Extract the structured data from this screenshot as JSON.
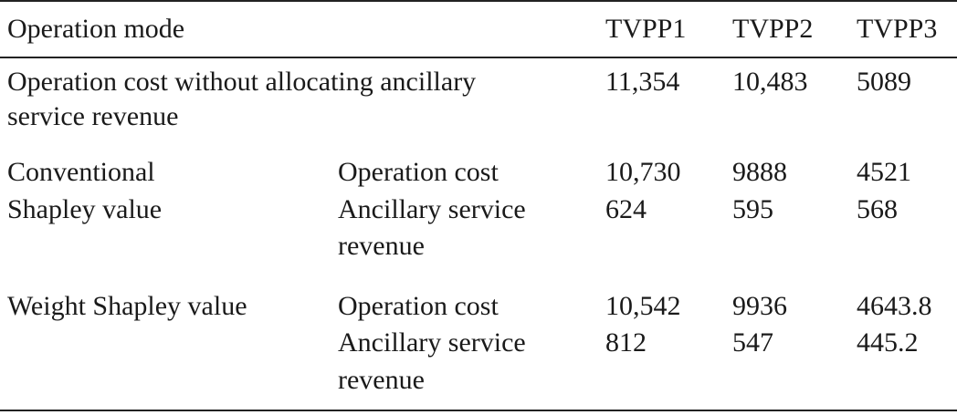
{
  "table": {
    "header": {
      "operation_mode": "Operation mode",
      "tvpp1": "TVPP1",
      "tvpp2": "TVPP2",
      "tvpp3": "TVPP3"
    },
    "rows": [
      {
        "label_line1": "Operation cost without allocating ancillary",
        "label_line2": "service revenue",
        "tvpp1": "11,354",
        "tvpp2": "10,483",
        "tvpp3": "5089"
      },
      {
        "method_line1": "Conventional",
        "method_line2": "Shapley value",
        "op_label": "Operation cost",
        "op": {
          "tvpp1": "10,730",
          "tvpp2": "9888",
          "tvpp3": "4521"
        },
        "anc_label_line1": "Ancillary service",
        "anc_label_line2": "revenue",
        "anc": {
          "tvpp1": "624",
          "tvpp2": "595",
          "tvpp3": "568"
        }
      },
      {
        "method_line1": "Weight Shapley value",
        "op_label": "Operation cost",
        "op": {
          "tvpp1": "10,542",
          "tvpp2": "9936",
          "tvpp3": "4643.8"
        },
        "anc_label_line1": "Ancillary service",
        "anc_label_line2": "revenue",
        "anc": {
          "tvpp1": "812",
          "tvpp2": "547",
          "tvpp3": "445.2"
        }
      }
    ]
  }
}
